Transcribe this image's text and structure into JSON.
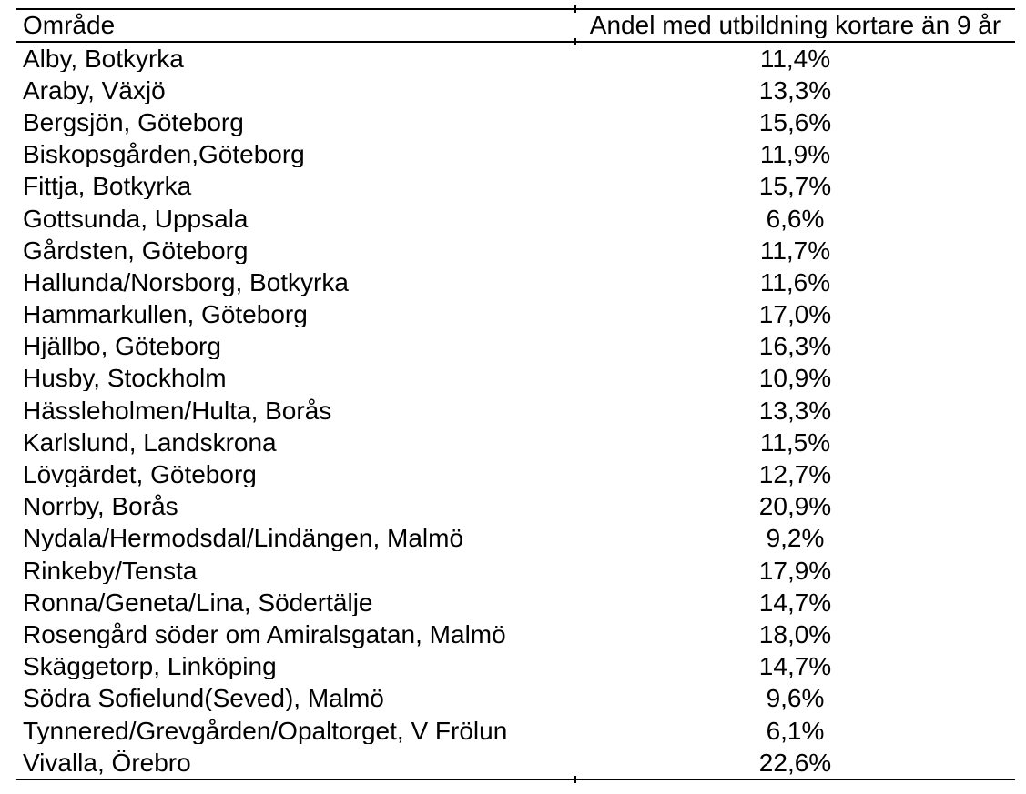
{
  "page": {
    "background_color": "#ffffff",
    "text_color": "#000000"
  },
  "table": {
    "columns": [
      {
        "key": "area",
        "label": "Område",
        "align": "left"
      },
      {
        "key": "value",
        "label": "Andel med utbildning kortare än 9 år",
        "align": "center"
      }
    ],
    "rows": [
      {
        "area": "Alby, Botkyrka",
        "value": "11,4%"
      },
      {
        "area": "Araby, Växjö",
        "value": "13,3%"
      },
      {
        "area": "Bergsjön, Göteborg",
        "value": "15,6%"
      },
      {
        "area": "Biskopsgården,Göteborg",
        "value": "11,9%"
      },
      {
        "area": "Fittja, Botkyrka",
        "value": "15,7%"
      },
      {
        "area": "Gottsunda, Uppsala",
        "value": "6,6%"
      },
      {
        "area": "Gårdsten, Göteborg",
        "value": "11,7%"
      },
      {
        "area": "Hallunda/Norsborg, Botkyrka",
        "value": "11,6%"
      },
      {
        "area": "Hammarkullen, Göteborg",
        "value": "17,0%"
      },
      {
        "area": "Hjällbo, Göteborg",
        "value": "16,3%"
      },
      {
        "area": "Husby, Stockholm",
        "value": "10,9%"
      },
      {
        "area": "Hässleholmen/Hulta, Borås",
        "value": "13,3%"
      },
      {
        "area": "Karlslund, Landskrona",
        "value": "11,5%"
      },
      {
        "area": "Lövgärdet, Göteborg",
        "value": "12,7%"
      },
      {
        "area": "Norrby, Borås",
        "value": "20,9%"
      },
      {
        "area": "Nydala/Hermodsdal/Lindängen, Malmö",
        "value": "9,2%"
      },
      {
        "area": "Rinkeby/Tensta",
        "value": "17,9%"
      },
      {
        "area": "Ronna/Geneta/Lina, Södertälje",
        "value": "14,7%"
      },
      {
        "area": "Rosengård söder om Amiralsgatan, Malmö",
        "value": "18,0%"
      },
      {
        "area": "Skäggetorp, Linköping",
        "value": "14,7%"
      },
      {
        "area": "Södra Sofielund(Seved), Malmö",
        "value": "9,6%"
      },
      {
        "area": "Tynnered/Grevgården/Opaltorget, V Frölun",
        "value": "6,1%"
      },
      {
        "area": "Vivalla, Örebro",
        "value": "22,6%"
      }
    ]
  },
  "chart_data": {
    "type": "table",
    "columns": [
      "Område",
      "Andel med utbildning kortare än 9 år"
    ],
    "rows": [
      [
        "Alby, Botkyrka",
        "11,4%"
      ],
      [
        "Araby, Växjö",
        "13,3%"
      ],
      [
        "Bergsjön, Göteborg",
        "15,6%"
      ],
      [
        "Biskopsgården,Göteborg",
        "11,9%"
      ],
      [
        "Fittja, Botkyrka",
        "15,7%"
      ],
      [
        "Gottsunda, Uppsala",
        "6,6%"
      ],
      [
        "Gårdsten, Göteborg",
        "11,7%"
      ],
      [
        "Hallunda/Norsborg, Botkyrka",
        "11,6%"
      ],
      [
        "Hammarkullen, Göteborg",
        "17,0%"
      ],
      [
        "Hjällbo, Göteborg",
        "16,3%"
      ],
      [
        "Husby, Stockholm",
        "10,9%"
      ],
      [
        "Hässleholmen/Hulta, Borås",
        "13,3%"
      ],
      [
        "Karlslund, Landskrona",
        "11,5%"
      ],
      [
        "Lövgärdet, Göteborg",
        "12,7%"
      ],
      [
        "Norrby, Borås",
        "20,9%"
      ],
      [
        "Nydala/Hermodsdal/Lindängen, Malmö",
        "9,2%"
      ],
      [
        "Rinkeby/Tensta",
        "17,9%"
      ],
      [
        "Ronna/Geneta/Lina, Södertälje",
        "14,7%"
      ],
      [
        "Rosengård söder om Amiralsgatan, Malmö",
        "18,0%"
      ],
      [
        "Skäggetorp, Linköping",
        "14,7%"
      ],
      [
        "Södra Sofielund(Seved), Malmö",
        "9,6%"
      ],
      [
        "Tynnered/Grevgården/Opaltorget, V Frölun",
        "6,1%"
      ],
      [
        "Vivalla, Örebro",
        "22,6%"
      ]
    ]
  }
}
